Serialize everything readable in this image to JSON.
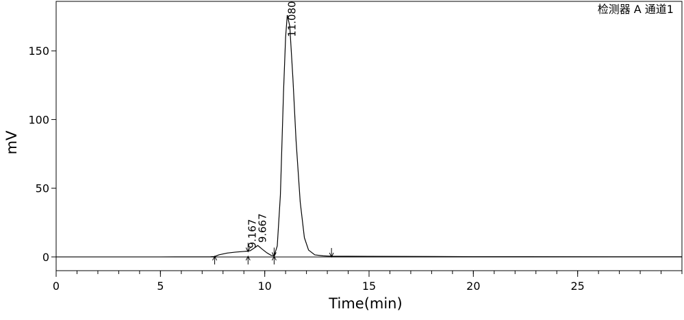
{
  "chart_data": {
    "type": "line",
    "title": "检测器 A 通道1",
    "x_label": "Time(min)",
    "y_label": "mV",
    "x": [
      0,
      5,
      7.4,
      7.6,
      7.8,
      8.2,
      8.6,
      9.0,
      9.167,
      9.3,
      9.5,
      9.667,
      9.85,
      10.1,
      10.3,
      10.45,
      10.6,
      10.75,
      10.9,
      11.0,
      11.08,
      11.2,
      11.35,
      11.5,
      11.7,
      11.9,
      12.1,
      12.4,
      12.8,
      13.2,
      15,
      20,
      30
    ],
    "series": [
      {
        "name": "检测器 A 通道1",
        "color": "#000000",
        "values": [
          0,
          0,
          0.1,
          0.3,
          1.5,
          2.8,
          3.5,
          4,
          4.2,
          4.5,
          6.5,
          8.3,
          6,
          3,
          1.2,
          0.8,
          8,
          45,
          120,
          160,
          176,
          168,
          130,
          85,
          40,
          14,
          5,
          1.5,
          0.8,
          0.5,
          0.4,
          0.2,
          0.1
        ]
      }
    ],
    "peak_labels": [
      9.167,
      9.667,
      {
        "value": 11.08,
        "label": "11.080"
      }
    ],
    "integration_marks": {
      "up": [
        7.6,
        9.2,
        10.45
      ],
      "down": [
        9.2,
        10.45,
        13.2
      ]
    },
    "xlim": [
      0,
      30
    ],
    "xticks": [
      0,
      5,
      10,
      15,
      20,
      25
    ],
    "xminor_step": 1,
    "ylim": [
      -10,
      186
    ],
    "yticks": [
      0,
      50,
      100,
      150
    ]
  }
}
